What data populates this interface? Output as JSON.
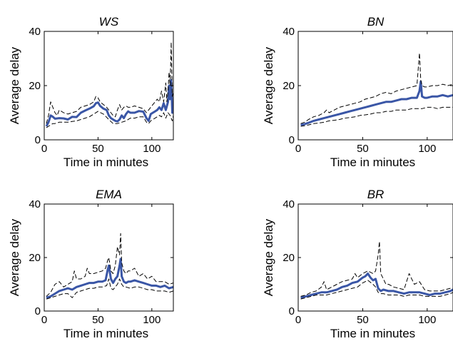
{
  "chart_data": [
    {
      "type": "line",
      "title": "WS",
      "xlabel": "Time in minutes",
      "ylabel": "Average delay",
      "xlim": [
        0,
        120
      ],
      "ylim": [
        0,
        40
      ],
      "xticks": [
        "0",
        "50",
        "100"
      ],
      "yticks": [
        "0",
        "20",
        "40"
      ],
      "grid": false,
      "legend": "none",
      "series": [
        {
          "role": "mean",
          "style": "solid",
          "color": "#3a56a6",
          "x": [
            2,
            4,
            6,
            8,
            10,
            14,
            18,
            22,
            26,
            30,
            34,
            38,
            42,
            46,
            48,
            50,
            52,
            55,
            58,
            60,
            62,
            64,
            66,
            68,
            70,
            72,
            74,
            76,
            78,
            80,
            84,
            88,
            92,
            95,
            97,
            99,
            101,
            103,
            105,
            107,
            109,
            111,
            113,
            115,
            116,
            117,
            118,
            119,
            120
          ],
          "y": [
            5,
            6.5,
            9,
            8.5,
            7.8,
            8,
            7.9,
            7.5,
            8.5,
            8.4,
            10,
            10.8,
            11.5,
            12.4,
            13.5,
            13.8,
            12.5,
            11.5,
            11,
            9,
            8,
            7.5,
            7,
            6.8,
            7.5,
            9,
            8,
            9.5,
            10.5,
            10,
            10,
            10.6,
            10.4,
            8,
            7,
            9.5,
            10,
            10.5,
            11,
            12,
            11,
            13.5,
            11,
            14,
            20,
            15,
            22,
            10,
            13
          ]
        },
        {
          "role": "upper",
          "style": "dashed",
          "color": "#000000",
          "x": [
            2,
            4,
            6,
            8,
            10,
            12,
            14,
            18,
            22,
            26,
            30,
            34,
            38,
            42,
            46,
            48,
            50,
            52,
            55,
            58,
            60,
            62,
            64,
            66,
            68,
            70,
            72,
            74,
            76,
            78,
            80,
            84,
            88,
            92,
            95,
            97,
            99,
            101,
            103,
            105,
            107,
            109,
            111,
            113,
            114,
            115,
            116,
            117,
            118,
            119,
            120
          ],
          "y": [
            6,
            9,
            14,
            12,
            10,
            9,
            11,
            10,
            9.5,
            10,
            10.5,
            12,
            12.5,
            13,
            14,
            16,
            15.5,
            14,
            13,
            12,
            11,
            10,
            9,
            8.5,
            11,
            13,
            11,
            12,
            12.5,
            12,
            12,
            12.5,
            12,
            11.5,
            10,
            11,
            12,
            13,
            14,
            15,
            14,
            18,
            14,
            21,
            14,
            18,
            25,
            20,
            36,
            16,
            18
          ]
        },
        {
          "role": "lower",
          "style": "dashed",
          "color": "#000000",
          "x": [
            2,
            4,
            6,
            8,
            10,
            14,
            18,
            22,
            26,
            30,
            34,
            38,
            42,
            46,
            50,
            55,
            60,
            64,
            68,
            72,
            76,
            80,
            84,
            88,
            92,
            95,
            97,
            99,
            101,
            103,
            105,
            107,
            109,
            111,
            113,
            115,
            117,
            119,
            120
          ],
          "y": [
            4.5,
            5,
            5.5,
            6,
            6,
            6.5,
            6.5,
            6.5,
            6.8,
            7,
            7.5,
            8,
            8.5,
            9.5,
            10.5,
            9.5,
            7.5,
            6,
            6,
            6.5,
            7,
            8,
            8,
            8.5,
            8.5,
            6.5,
            6,
            7,
            7.5,
            8,
            8.5,
            9,
            8.5,
            10,
            8,
            10,
            9,
            7,
            9
          ]
        }
      ]
    },
    {
      "type": "line",
      "title": "BN",
      "xlabel": "Time in minutes",
      "ylabel": "Average delay",
      "xlim": [
        0,
        120
      ],
      "ylim": [
        0,
        40
      ],
      "xticks": [
        "0",
        "50",
        "100"
      ],
      "yticks": [
        "0",
        "20",
        "40"
      ],
      "grid": false,
      "legend": "none",
      "series": [
        {
          "role": "mean",
          "style": "solid",
          "color": "#3a56a6",
          "x": [
            2,
            5,
            8,
            12,
            16,
            20,
            24,
            28,
            32,
            36,
            40,
            44,
            48,
            52,
            56,
            60,
            64,
            68,
            72,
            76,
            80,
            84,
            88,
            92,
            94,
            95,
            96,
            98,
            100,
            104,
            108,
            112,
            116,
            120
          ],
          "y": [
            5.5,
            5.8,
            6.3,
            7,
            7.5,
            8,
            8.5,
            9,
            9.5,
            10,
            10.5,
            11,
            11.5,
            12,
            12.5,
            13,
            13.5,
            14,
            14,
            14.5,
            15,
            15,
            15.5,
            15.5,
            18,
            21.5,
            16,
            15.5,
            15.5,
            16,
            16,
            16.5,
            16,
            16.5
          ]
        },
        {
          "role": "upper",
          "style": "dashed",
          "color": "#000000",
          "x": [
            2,
            5,
            8,
            12,
            16,
            20,
            22,
            24,
            28,
            32,
            36,
            40,
            44,
            48,
            52,
            56,
            60,
            64,
            68,
            72,
            76,
            80,
            84,
            88,
            92,
            93,
            94,
            95,
            96,
            98,
            100,
            104,
            108,
            112,
            116,
            120
          ],
          "y": [
            6,
            6.5,
            7.5,
            8.5,
            9,
            10,
            11,
            10,
            11,
            12,
            12.5,
            13,
            13.5,
            14,
            15,
            15.5,
            16,
            17,
            17.5,
            17,
            18,
            18.5,
            19,
            19.5,
            20,
            26,
            32,
            22,
            20,
            19.5,
            19.5,
            20,
            20,
            20.5,
            20,
            20.5
          ]
        },
        {
          "role": "lower",
          "style": "dashed",
          "color": "#000000",
          "x": [
            2,
            5,
            8,
            12,
            16,
            20,
            24,
            28,
            32,
            36,
            40,
            44,
            48,
            52,
            56,
            60,
            64,
            68,
            72,
            76,
            80,
            84,
            88,
            92,
            96,
            100,
            104,
            108,
            112,
            116,
            120
          ],
          "y": [
            5,
            5.2,
            5.5,
            6,
            6.2,
            6.5,
            7,
            7.2,
            7.5,
            8,
            8.2,
            8.5,
            9,
            9.2,
            9.5,
            10,
            10,
            10.5,
            10.5,
            11,
            11,
            11,
            11.5,
            11.5,
            11.5,
            12,
            12,
            11.5,
            12,
            12,
            12
          ]
        }
      ]
    },
    {
      "type": "line",
      "title": "EMA",
      "xlabel": "Time in minutes",
      "ylabel": "Average delay",
      "xlim": [
        0,
        120
      ],
      "ylim": [
        0,
        40
      ],
      "xticks": [
        "0",
        "50",
        "100"
      ],
      "yticks": [
        "0",
        "20",
        "40"
      ],
      "grid": false,
      "legend": "none",
      "series": [
        {
          "role": "mean",
          "style": "solid",
          "color": "#3a56a6",
          "x": [
            2,
            6,
            10,
            14,
            18,
            22,
            26,
            30,
            34,
            38,
            42,
            46,
            50,
            54,
            57,
            59,
            60,
            62,
            64,
            66,
            68,
            70,
            71,
            72,
            74,
            76,
            78,
            80,
            84,
            88,
            92,
            96,
            100,
            104,
            108,
            112,
            116,
            120
          ],
          "y": [
            5,
            5.5,
            6.5,
            7.5,
            8,
            8.5,
            8,
            9,
            9.5,
            10,
            10.5,
            10.5,
            11,
            11,
            11.5,
            15.5,
            17,
            12,
            10.5,
            12,
            13,
            17,
            19.5,
            13,
            11,
            10.5,
            11,
            11,
            11.5,
            11,
            10.5,
            10,
            9.5,
            9.5,
            9,
            9.5,
            8.5,
            9
          ]
        },
        {
          "role": "upper",
          "style": "dashed",
          "color": "#000000",
          "x": [
            2,
            6,
            10,
            14,
            18,
            22,
            26,
            28,
            30,
            34,
            38,
            40,
            42,
            46,
            50,
            54,
            57,
            59,
            60,
            62,
            64,
            66,
            68,
            70,
            71,
            72,
            74,
            76,
            78,
            80,
            84,
            88,
            92,
            96,
            100,
            104,
            108,
            112,
            116,
            120
          ],
          "y": [
            5.5,
            7,
            10,
            11,
            9,
            10,
            11,
            15,
            12,
            12,
            13,
            16,
            14,
            14,
            14.5,
            15,
            16,
            19,
            20,
            15,
            14,
            17,
            24,
            21,
            29,
            18,
            15,
            14,
            15,
            15,
            16,
            13,
            14,
            12,
            13,
            11,
            11,
            11,
            10,
            10.5
          ]
        },
        {
          "role": "lower",
          "style": "dashed",
          "color": "#000000",
          "x": [
            2,
            6,
            10,
            14,
            18,
            22,
            26,
            30,
            34,
            38,
            42,
            46,
            50,
            54,
            58,
            60,
            62,
            64,
            66,
            68,
            70,
            72,
            74,
            76,
            80,
            84,
            88,
            92,
            96,
            100,
            104,
            108,
            112,
            116,
            120
          ],
          "y": [
            4.5,
            5,
            5.5,
            6,
            6.5,
            6.5,
            5,
            7,
            7.5,
            8,
            8.5,
            8.5,
            9,
            9,
            9.5,
            12,
            8.5,
            8,
            9,
            10,
            12,
            10,
            9,
            9,
            8.5,
            9,
            9,
            8.5,
            8,
            8,
            7.5,
            7.5,
            7.5,
            7,
            7.5
          ]
        }
      ]
    },
    {
      "type": "line",
      "title": "BR",
      "xlabel": "Time in minutes",
      "ylabel": "Average delay",
      "xlim": [
        0,
        120
      ],
      "ylim": [
        0,
        40
      ],
      "xticks": [
        "0",
        "50",
        "100"
      ],
      "yticks": [
        "0",
        "20",
        "40"
      ],
      "grid": false,
      "legend": "none",
      "series": [
        {
          "role": "mean",
          "style": "solid",
          "color": "#3a56a6",
          "x": [
            2,
            6,
            10,
            14,
            18,
            22,
            26,
            30,
            34,
            38,
            42,
            46,
            50,
            52,
            54,
            56,
            58,
            60,
            62,
            64,
            66,
            70,
            74,
            78,
            82,
            86,
            90,
            94,
            98,
            102,
            106,
            110,
            114,
            118,
            120
          ],
          "y": [
            5,
            5.5,
            6,
            6.5,
            7,
            7,
            7.5,
            8,
            9,
            9.5,
            10.5,
            11,
            12.5,
            13,
            14,
            12.5,
            11.5,
            12,
            8.5,
            7.5,
            8,
            7.5,
            7.5,
            7,
            6.5,
            7,
            7,
            7,
            6.5,
            6,
            6.5,
            6.5,
            7,
            7.5,
            8
          ]
        },
        {
          "role": "upper",
          "style": "dashed",
          "color": "#000000",
          "x": [
            2,
            6,
            10,
            14,
            18,
            20,
            22,
            26,
            30,
            34,
            38,
            42,
            44,
            46,
            50,
            54,
            58,
            60,
            62,
            63,
            64,
            66,
            68,
            70,
            74,
            78,
            82,
            86,
            90,
            94,
            98,
            102,
            106,
            110,
            114,
            118,
            120
          ],
          "y": [
            5.5,
            6,
            7,
            7.5,
            9,
            11,
            8,
            9,
            10,
            11,
            11.5,
            12,
            14,
            12.5,
            14,
            15,
            14,
            15,
            21,
            26,
            14,
            12,
            10,
            10,
            9,
            8.5,
            8,
            14,
            10,
            11,
            8,
            7.5,
            7.5,
            7.5,
            8,
            8.5,
            8.5
          ]
        },
        {
          "role": "lower",
          "style": "dashed",
          "color": "#000000",
          "x": [
            2,
            6,
            10,
            14,
            18,
            22,
            26,
            30,
            34,
            38,
            42,
            46,
            50,
            54,
            58,
            60,
            62,
            64,
            66,
            70,
            74,
            78,
            82,
            86,
            90,
            94,
            98,
            102,
            106,
            110,
            114,
            118,
            120
          ],
          "y": [
            4.5,
            5,
            5.5,
            6,
            6,
            6,
            6.5,
            7,
            7.5,
            8,
            8.5,
            9,
            10.5,
            11.5,
            10,
            9,
            7,
            6.5,
            6.5,
            6,
            6,
            6,
            5.5,
            6,
            6,
            6,
            5.5,
            5.5,
            5.5,
            5.5,
            6,
            6.5,
            7
          ]
        }
      ]
    }
  ]
}
